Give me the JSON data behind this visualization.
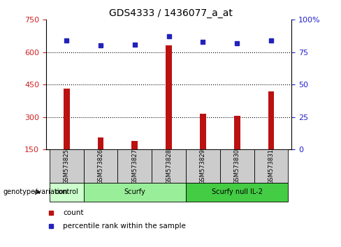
{
  "title": "GDS4333 / 1436077_a_at",
  "samples": [
    "GSM573825",
    "GSM573826",
    "GSM573827",
    "GSM573828",
    "GSM573829",
    "GSM573830",
    "GSM573831"
  ],
  "counts": [
    430,
    205,
    190,
    630,
    315,
    305,
    420
  ],
  "percentile_ranks": [
    84,
    80,
    81,
    87,
    83,
    82,
    84
  ],
  "ylim_left": [
    150,
    750
  ],
  "ylim_right": [
    0,
    100
  ],
  "yticks_left": [
    150,
    300,
    450,
    600,
    750
  ],
  "yticks_right": [
    0,
    25,
    50,
    75,
    100
  ],
  "right_tick_labels": [
    "0",
    "25",
    "50",
    "75",
    "100%"
  ],
  "bar_color": "#bb1111",
  "dot_color": "#2222bb",
  "bar_bottom": 150,
  "bar_width": 0.18,
  "groups": [
    {
      "label": "control",
      "start": 0,
      "end": 1,
      "color": "#ccffcc"
    },
    {
      "label": "Scurfy",
      "start": 1,
      "end": 4,
      "color": "#99ee99"
    },
    {
      "label": "Scurfy null IL-2",
      "start": 4,
      "end": 7,
      "color": "#44cc44"
    }
  ],
  "group_label_prefix": "genotype/variation",
  "legend_count_label": "count",
  "legend_pct_label": "percentile rank within the sample",
  "grid_color": "#000000",
  "bg_color": "#ffffff",
  "tick_label_color_left": "#cc2222",
  "tick_label_color_right": "#2222cc",
  "sample_box_color": "#cccccc",
  "dot_size": 5
}
